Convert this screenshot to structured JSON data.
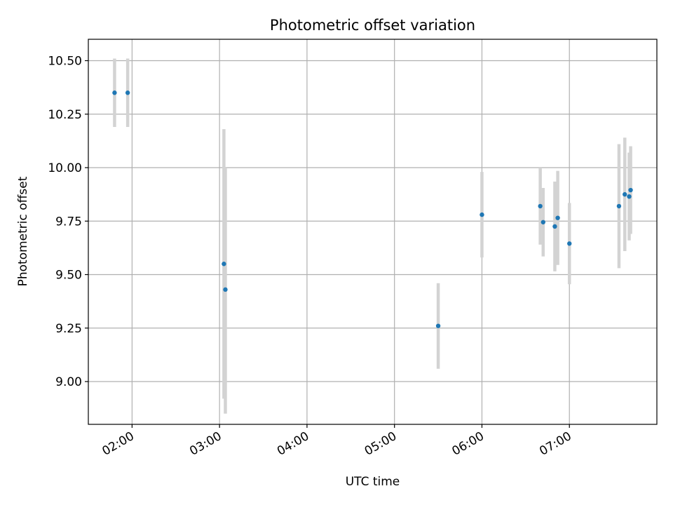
{
  "chart_data": {
    "type": "scatter",
    "title": "Photometric offset variation",
    "xlabel": "UTC time",
    "ylabel": "Photometric offset",
    "x_axis": {
      "kind": "time",
      "range": [
        "01:30",
        "08:00"
      ],
      "ticks": [
        "02:00",
        "03:00",
        "04:00",
        "05:00",
        "06:00",
        "07:00"
      ]
    },
    "y_axis": {
      "range": [
        8.8,
        10.6
      ],
      "ticks": [
        9.0,
        9.25,
        9.5,
        9.75,
        10.0,
        10.25,
        10.5
      ],
      "tick_labels": [
        "9.00",
        "9.25",
        "9.50",
        "9.75",
        "10.00",
        "10.25",
        "10.50"
      ]
    },
    "grid": true,
    "marker_color": "#1f77b4",
    "errorbar_color": "#d3d3d3",
    "points": [
      {
        "x": "01:48",
        "y": 10.35,
        "ylow": 10.19,
        "yhigh": 10.51
      },
      {
        "x": "01:57",
        "y": 10.35,
        "ylow": 10.19,
        "yhigh": 10.51
      },
      {
        "x": "03:03",
        "y": 9.55,
        "ylow": 8.92,
        "yhigh": 10.18
      },
      {
        "x": "03:04",
        "y": 9.43,
        "ylow": 8.85,
        "yhigh": 10.0
      },
      {
        "x": "05:30",
        "y": 9.26,
        "ylow": 9.06,
        "yhigh": 9.46
      },
      {
        "x": "06:00",
        "y": 9.78,
        "ylow": 9.58,
        "yhigh": 9.98
      },
      {
        "x": "06:40",
        "y": 9.82,
        "ylow": 9.64,
        "yhigh": 10.0
      },
      {
        "x": "06:42",
        "y": 9.745,
        "ylow": 9.585,
        "yhigh": 9.905
      },
      {
        "x": "06:50",
        "y": 9.725,
        "ylow": 9.515,
        "yhigh": 9.935
      },
      {
        "x": "06:52",
        "y": 9.765,
        "ylow": 9.545,
        "yhigh": 9.985
      },
      {
        "x": "07:00",
        "y": 9.645,
        "ylow": 9.455,
        "yhigh": 9.835
      },
      {
        "x": "07:34",
        "y": 9.82,
        "ylow": 9.53,
        "yhigh": 10.11
      },
      {
        "x": "07:38",
        "y": 9.875,
        "ylow": 9.61,
        "yhigh": 10.14
      },
      {
        "x": "07:41",
        "y": 9.865,
        "ylow": 9.66,
        "yhigh": 10.07
      },
      {
        "x": "07:42",
        "y": 9.895,
        "ylow": 9.69,
        "yhigh": 10.1
      }
    ]
  }
}
